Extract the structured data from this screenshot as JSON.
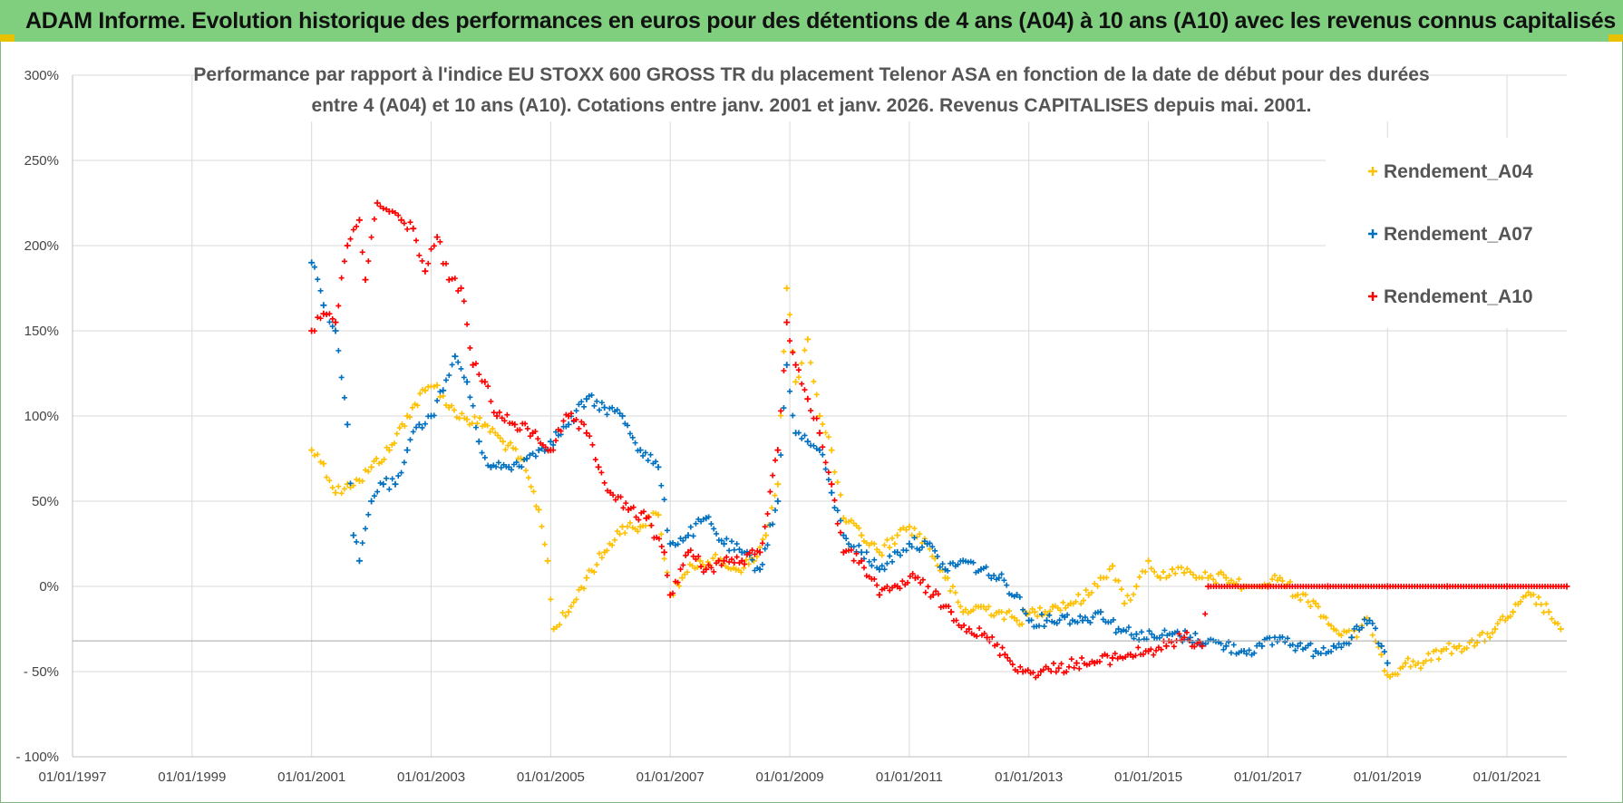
{
  "banner": {
    "title": "ADAM Informe. Evolution historique des performances en euros pour des détentions de 4 ans (A04) à 10 ans (A10) avec les revenus connus capitalisés"
  },
  "chart_data": {
    "type": "scatter",
    "title_line1": "Performance par rapport à l'indice EU STOXX 600 GROSS TR  du placement Telenor ASA en fonction de la date de début pour des durées",
    "title_line2": "entre 4 (A04) et 10 ans (A10).  Cotations entre janv. 2001 et janv. 2026. Revenus CAPITALISES depuis mai. 2001.",
    "xlabel": "",
    "ylabel": "",
    "xlim": [
      1997.0,
      2022.0
    ],
    "ylim": [
      -100,
      300
    ],
    "x_ticks": [
      "01/01/1997",
      "01/01/1999",
      "01/01/2001",
      "01/01/2003",
      "01/01/2005",
      "01/01/2007",
      "01/01/2009",
      "01/01/2011",
      "01/01/2013",
      "01/01/2015",
      "01/01/2017",
      "01/01/2019",
      "01/01/2021"
    ],
    "y_ticks": [
      "300%",
      "250%",
      "200%",
      "150%",
      "100%",
      "50%",
      "0%",
      "- 50%",
      "- 100%"
    ],
    "grid": true,
    "legend_position": "top-right",
    "marker": "+",
    "series": [
      {
        "name": "Rendement_A04",
        "color": "#ffc000",
        "points": [
          [
            2001.0,
            80
          ],
          [
            2001.2,
            72
          ],
          [
            2001.4,
            55
          ],
          [
            2001.6,
            60
          ],
          [
            2001.8,
            62
          ],
          [
            2002.0,
            70
          ],
          [
            2002.3,
            80
          ],
          [
            2002.6,
            100
          ],
          [
            2002.9,
            115
          ],
          [
            2003.1,
            118
          ],
          [
            2003.3,
            105
          ],
          [
            2003.6,
            98
          ],
          [
            2003.9,
            95
          ],
          [
            2004.2,
            85
          ],
          [
            2004.5,
            75
          ],
          [
            2004.8,
            45
          ],
          [
            2004.95,
            15
          ],
          [
            2005.05,
            -25
          ],
          [
            2005.3,
            -15
          ],
          [
            2005.6,
            5
          ],
          [
            2005.9,
            20
          ],
          [
            2006.2,
            35
          ],
          [
            2006.5,
            35
          ],
          [
            2006.8,
            42
          ],
          [
            2007.0,
            -5
          ],
          [
            2007.2,
            5
          ],
          [
            2007.5,
            15
          ],
          [
            2007.8,
            15
          ],
          [
            2008.1,
            10
          ],
          [
            2008.4,
            15
          ],
          [
            2008.6,
            30
          ],
          [
            2008.8,
            60
          ],
          [
            2008.95,
            175
          ],
          [
            2009.1,
            120
          ],
          [
            2009.3,
            145
          ],
          [
            2009.5,
            100
          ],
          [
            2009.7,
            80
          ],
          [
            2009.9,
            40
          ],
          [
            2010.2,
            30
          ],
          [
            2010.5,
            20
          ],
          [
            2010.8,
            30
          ],
          [
            2011.0,
            35
          ],
          [
            2011.3,
            25
          ],
          [
            2011.6,
            5
          ],
          [
            2011.9,
            -15
          ],
          [
            2012.2,
            -12
          ],
          [
            2012.5,
            -15
          ],
          [
            2012.8,
            -20
          ],
          [
            2013.1,
            -15
          ],
          [
            2013.4,
            -12
          ],
          [
            2013.7,
            -10
          ],
          [
            2014.0,
            -5
          ],
          [
            2014.2,
            5
          ],
          [
            2014.4,
            12
          ],
          [
            2014.6,
            -10
          ],
          [
            2014.8,
            0
          ],
          [
            2015.0,
            15
          ],
          [
            2015.2,
            5
          ],
          [
            2015.4,
            10
          ],
          [
            2015.6,
            8
          ],
          [
            2015.8,
            5
          ],
          [
            2016.0,
            5
          ],
          [
            2016.3,
            5
          ],
          [
            2016.6,
            0
          ],
          [
            2016.9,
            0
          ],
          [
            2017.2,
            5
          ],
          [
            2017.5,
            -5
          ],
          [
            2017.8,
            -10
          ],
          [
            2018.1,
            -25
          ],
          [
            2018.4,
            -30
          ],
          [
            2018.7,
            -20
          ],
          [
            2018.9,
            -40
          ],
          [
            2019.0,
            -52
          ],
          [
            2019.3,
            -45
          ],
          [
            2019.6,
            -45
          ],
          [
            2019.9,
            -38
          ],
          [
            2020.2,
            -35
          ],
          [
            2020.5,
            -33
          ],
          [
            2020.8,
            -25
          ],
          [
            2021.1,
            -15
          ],
          [
            2021.4,
            -5
          ],
          [
            2021.7,
            -15
          ],
          [
            2021.9,
            -25
          ]
        ]
      },
      {
        "name": "Rendement_A07",
        "color": "#0070c0",
        "points": [
          [
            2001.0,
            190
          ],
          [
            2001.2,
            165
          ],
          [
            2001.4,
            150
          ],
          [
            2001.6,
            95
          ],
          [
            2001.7,
            30
          ],
          [
            2001.8,
            15
          ],
          [
            2002.0,
            50
          ],
          [
            2002.2,
            60
          ],
          [
            2002.4,
            60
          ],
          [
            2002.6,
            80
          ],
          [
            2002.8,
            95
          ],
          [
            2003.0,
            100
          ],
          [
            2003.2,
            115
          ],
          [
            2003.4,
            135
          ],
          [
            2003.6,
            120
          ],
          [
            2003.8,
            85
          ],
          [
            2004.0,
            70
          ],
          [
            2004.3,
            70
          ],
          [
            2004.6,
            75
          ],
          [
            2004.8,
            80
          ],
          [
            2005.0,
            85
          ],
          [
            2005.3,
            95
          ],
          [
            2005.6,
            110
          ],
          [
            2005.9,
            105
          ],
          [
            2006.2,
            100
          ],
          [
            2006.5,
            80
          ],
          [
            2006.8,
            70
          ],
          [
            2007.0,
            25
          ],
          [
            2007.3,
            30
          ],
          [
            2007.6,
            40
          ],
          [
            2007.9,
            25
          ],
          [
            2008.2,
            20
          ],
          [
            2008.5,
            10
          ],
          [
            2008.8,
            50
          ],
          [
            2008.95,
            130
          ],
          [
            2009.1,
            90
          ],
          [
            2009.3,
            85
          ],
          [
            2009.5,
            80
          ],
          [
            2009.7,
            55
          ],
          [
            2009.9,
            30
          ],
          [
            2010.2,
            20
          ],
          [
            2010.5,
            10
          ],
          [
            2010.8,
            20
          ],
          [
            2011.0,
            25
          ],
          [
            2011.3,
            25
          ],
          [
            2011.6,
            10
          ],
          [
            2011.9,
            15
          ],
          [
            2012.2,
            10
          ],
          [
            2012.5,
            5
          ],
          [
            2012.8,
            -5
          ],
          [
            2013.0,
            -20
          ],
          [
            2013.3,
            -20
          ],
          [
            2013.6,
            -18
          ],
          [
            2013.9,
            -20
          ],
          [
            2014.2,
            -15
          ],
          [
            2014.5,
            -25
          ],
          [
            2014.8,
            -28
          ],
          [
            2015.1,
            -30
          ],
          [
            2015.4,
            -28
          ],
          [
            2015.7,
            -30
          ],
          [
            2016.0,
            -32
          ],
          [
            2016.3,
            -35
          ],
          [
            2016.6,
            -38
          ],
          [
            2016.9,
            -35
          ],
          [
            2017.2,
            -30
          ],
          [
            2017.5,
            -35
          ],
          [
            2017.8,
            -38
          ],
          [
            2018.1,
            -35
          ],
          [
            2018.4,
            -30
          ],
          [
            2018.7,
            -20
          ],
          [
            2018.9,
            -35
          ],
          [
            2019.0,
            -45
          ]
        ]
      },
      {
        "name": "Rendement_A10",
        "color": "#ff0000",
        "points": [
          [
            2001.0,
            150
          ],
          [
            2001.2,
            160
          ],
          [
            2001.4,
            155
          ],
          [
            2001.6,
            200
          ],
          [
            2001.8,
            215
          ],
          [
            2001.9,
            180
          ],
          [
            2002.1,
            225
          ],
          [
            2002.3,
            220
          ],
          [
            2002.5,
            215
          ],
          [
            2002.7,
            210
          ],
          [
            2002.9,
            185
          ],
          [
            2003.1,
            205
          ],
          [
            2003.3,
            180
          ],
          [
            2003.5,
            175
          ],
          [
            2003.7,
            130
          ],
          [
            2003.9,
            120
          ],
          [
            2004.1,
            100
          ],
          [
            2004.4,
            95
          ],
          [
            2004.7,
            90
          ],
          [
            2005.0,
            80
          ],
          [
            2005.3,
            100
          ],
          [
            2005.6,
            90
          ],
          [
            2005.8,
            70
          ],
          [
            2006.0,
            55
          ],
          [
            2006.3,
            45
          ],
          [
            2006.6,
            40
          ],
          [
            2006.9,
            20
          ],
          [
            2007.0,
            -5
          ],
          [
            2007.3,
            20
          ],
          [
            2007.6,
            10
          ],
          [
            2007.9,
            15
          ],
          [
            2008.2,
            15
          ],
          [
            2008.5,
            20
          ],
          [
            2008.8,
            80
          ],
          [
            2008.95,
            155
          ],
          [
            2009.1,
            130
          ],
          [
            2009.3,
            110
          ],
          [
            2009.5,
            90
          ],
          [
            2009.7,
            60
          ],
          [
            2009.9,
            20
          ],
          [
            2010.2,
            15
          ],
          [
            2010.5,
            -5
          ],
          [
            2010.8,
            0
          ],
          [
            2011.1,
            5
          ],
          [
            2011.4,
            -5
          ],
          [
            2011.7,
            -15
          ],
          [
            2012.0,
            -25
          ],
          [
            2012.3,
            -30
          ],
          [
            2012.6,
            -40
          ],
          [
            2012.9,
            -50
          ],
          [
            2013.2,
            -50
          ],
          [
            2013.5,
            -48
          ],
          [
            2013.8,
            -45
          ],
          [
            2014.1,
            -45
          ],
          [
            2014.4,
            -42
          ],
          [
            2014.7,
            -40
          ],
          [
            2015.0,
            -38
          ],
          [
            2015.3,
            -35
          ],
          [
            2015.6,
            -30
          ],
          [
            2015.9,
            -35
          ],
          [
            2016.0,
            0
          ],
          [
            2017.0,
            0
          ],
          [
            2018.0,
            0
          ],
          [
            2019.0,
            0
          ],
          [
            2020.0,
            0
          ],
          [
            2021.0,
            0
          ],
          [
            2022.0,
            0
          ]
        ]
      }
    ]
  }
}
